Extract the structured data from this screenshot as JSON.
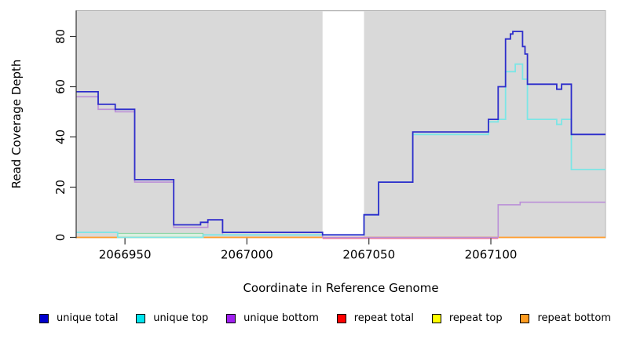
{
  "chart_data": {
    "type": "line",
    "subtype": "step-coverage-plot",
    "title": "",
    "xlabel": "Coordinate in Reference Genome",
    "ylabel": "Read Coverage Depth",
    "x_range": [
      2066930,
      2067147
    ],
    "y_range": [
      0,
      90
    ],
    "x_ticks": [
      {
        "value": 2066950,
        "label": "2066950"
      },
      {
        "value": 2067000,
        "label": "2067000"
      },
      {
        "value": 2067050,
        "label": "2067050"
      },
      {
        "value": 2067100,
        "label": "2067100"
      }
    ],
    "y_ticks": [
      {
        "value": 0,
        "label": "0"
      },
      {
        "value": 20,
        "label": "20"
      },
      {
        "value": 40,
        "label": "40"
      },
      {
        "value": 60,
        "label": "60"
      },
      {
        "value": 80,
        "label": "80"
      }
    ],
    "grid": false,
    "background": {
      "page": "#ffffff",
      "plot_fill": "#d9d9d9",
      "plot_border": "#b5b5b5"
    },
    "gap_region": {
      "x0": 2067031,
      "x1": 2067048,
      "fill": "#ffffff"
    },
    "annotations": [
      {
        "type": "band-rect",
        "name": "green-band",
        "x0": 2066947,
        "x1": 2066982,
        "y0": 0,
        "y1": 1.6,
        "fill": "#d9efdf",
        "stroke": "#84d39e"
      }
    ],
    "series": [
      {
        "name": "repeat total",
        "legend_color": "#ff0000",
        "line_color": "#e878ae",
        "width": 1.6,
        "points": [
          [
            2067031,
            -0.4
          ]
        ],
        "xend": 2067103
      },
      {
        "name": "repeat bottom",
        "legend_color": "#ff9c20",
        "line_color": "#ff9d2e",
        "width": 1.8,
        "points": [
          [
            2066930,
            0
          ]
        ]
      },
      {
        "name": "unique bottom",
        "legend_color": "#a020f0",
        "line_color": "#bb8fd8",
        "width": 1.6,
        "points": [
          [
            2066930,
            56
          ],
          [
            2066939,
            51
          ],
          [
            2066946,
            50
          ],
          [
            2066954,
            22
          ],
          [
            2066970,
            4
          ],
          [
            2066984,
            7
          ],
          [
            2066990,
            1
          ],
          [
            2067031,
            0
          ],
          [
            2067103,
            13
          ],
          [
            2067112,
            14
          ]
        ]
      },
      {
        "name": "unique top",
        "legend_color": "#00e5ee",
        "line_color": "#7ce6e6",
        "width": 1.8,
        "points": [
          [
            2066930,
            2
          ],
          [
            2066947,
            0
          ],
          [
            2066982,
            1
          ],
          [
            2067048,
            9
          ],
          [
            2067054,
            22
          ],
          [
            2067068,
            41
          ],
          [
            2067099,
            46
          ],
          [
            2067103,
            47
          ],
          [
            2067106,
            66
          ],
          [
            2067110,
            69
          ],
          [
            2067113,
            63
          ],
          [
            2067115,
            47
          ],
          [
            2067127,
            45
          ],
          [
            2067129,
            47
          ],
          [
            2067133,
            27
          ]
        ]
      },
      {
        "name": "unique total",
        "legend_color": "#0000cd",
        "line_color": "#2d2dcb",
        "width": 1.8,
        "points": [
          [
            2066930,
            58
          ],
          [
            2066939,
            53
          ],
          [
            2066946,
            51
          ],
          [
            2066954,
            23
          ],
          [
            2066970,
            5
          ],
          [
            2066981,
            6
          ],
          [
            2066984,
            7
          ],
          [
            2066990,
            2
          ],
          [
            2067031,
            1
          ],
          [
            2067048,
            9
          ],
          [
            2067054,
            22
          ],
          [
            2067068,
            42
          ],
          [
            2067099,
            47
          ],
          [
            2067103,
            60
          ],
          [
            2067106,
            79
          ],
          [
            2067108,
            81
          ],
          [
            2067109,
            82
          ],
          [
            2067113,
            76
          ],
          [
            2067114,
            73
          ],
          [
            2067115,
            61
          ],
          [
            2067127,
            59
          ],
          [
            2067129,
            61
          ],
          [
            2067133,
            41
          ]
        ]
      }
    ],
    "legend": [
      {
        "label": "unique total",
        "color": "#0000cd"
      },
      {
        "label": "unique top",
        "color": "#00e5ee"
      },
      {
        "label": "unique bottom",
        "color": "#a020f0"
      },
      {
        "label": "repeat total",
        "color": "#ff0000"
      },
      {
        "label": "repeat top",
        "color": "#ffff00"
      },
      {
        "label": "repeat bottom",
        "color": "#ff9c20"
      }
    ],
    "legend_position": "bottom"
  }
}
